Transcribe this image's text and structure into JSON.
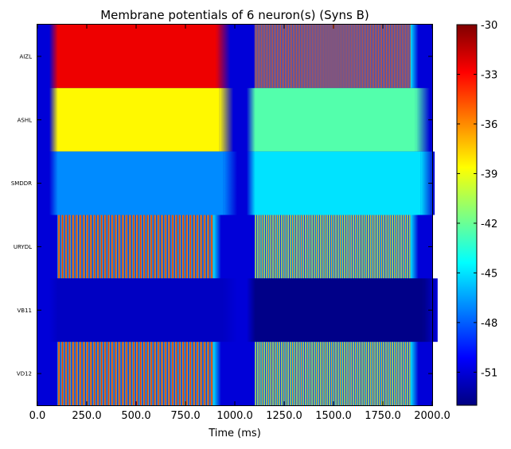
{
  "chart_data": {
    "type": "heatmap",
    "title": "Membrane potentials of 6 neuron(s) (Syns B)",
    "xlabel": "Time (ms)",
    "ylabel": "",
    "xlim": [
      0,
      2000
    ],
    "x_ticks": [
      "0.0",
      "250.0",
      "500.0",
      "750.0",
      "1000.0",
      "1250.0",
      "1500.0",
      "1750.0",
      "2000.0"
    ],
    "x_tick_values": [
      0,
      250,
      500,
      750,
      1000,
      1250,
      1500,
      1750,
      2000
    ],
    "rows": [
      "AIZL",
      "ASHL",
      "SMDDR",
      "URYDL",
      "VB11",
      "VD12"
    ],
    "colorbar": {
      "colormap": "jet",
      "vmin": -53,
      "vmax": -30,
      "ticks": [
        "-30",
        "-33",
        "-36",
        "-39",
        "-42",
        "-45",
        "-48",
        "-51"
      ],
      "tick_values": [
        -30,
        -33,
        -36,
        -39,
        -42,
        -45,
        -48,
        -51
      ]
    },
    "baseline_mV": -51,
    "stimulus_windows_ms": [
      [
        100,
        900
      ],
      [
        1100,
        1900
      ]
    ],
    "row_values": [
      {
        "name": "AIZL",
        "window1": {
          "type": "constant",
          "value": -32.5,
          "end": 905
        },
        "window2": {
          "type": "oscillation",
          "range": [
            -51,
            -32
          ],
          "period": 8,
          "end": 1890
        }
      },
      {
        "name": "ASHL",
        "window1": {
          "type": "constant",
          "value": -38.5,
          "end": 920
        },
        "window2": {
          "type": "constant",
          "value": -42.5,
          "end": 1915
        }
      },
      {
        "name": "SMDDR",
        "window1": {
          "type": "constant",
          "value": -47.0,
          "end": 940
        },
        "window2": {
          "type": "constant",
          "value": -45.0,
          "end": 1940
        }
      },
      {
        "name": "URYDL",
        "window1": {
          "type": "oscillation",
          "range": [
            -51,
            -32
          ],
          "period": 18,
          "end": 890
        },
        "window2": {
          "type": "oscillation",
          "range": [
            -51,
            -35
          ],
          "period": 11,
          "end": 1890
        }
      },
      {
        "name": "VB11",
        "window1": {
          "type": "constant",
          "value": -51.5,
          "end": 940
        },
        "window2": {
          "type": "constant",
          "value": -52.8,
          "end": 1955
        }
      },
      {
        "name": "VD12",
        "window1": {
          "type": "oscillation",
          "range": [
            -51,
            -32
          ],
          "period": 18,
          "end": 890
        },
        "window2": {
          "type": "oscillation",
          "range": [
            -51,
            -35
          ],
          "period": 11,
          "end": 1890
        }
      }
    ]
  }
}
